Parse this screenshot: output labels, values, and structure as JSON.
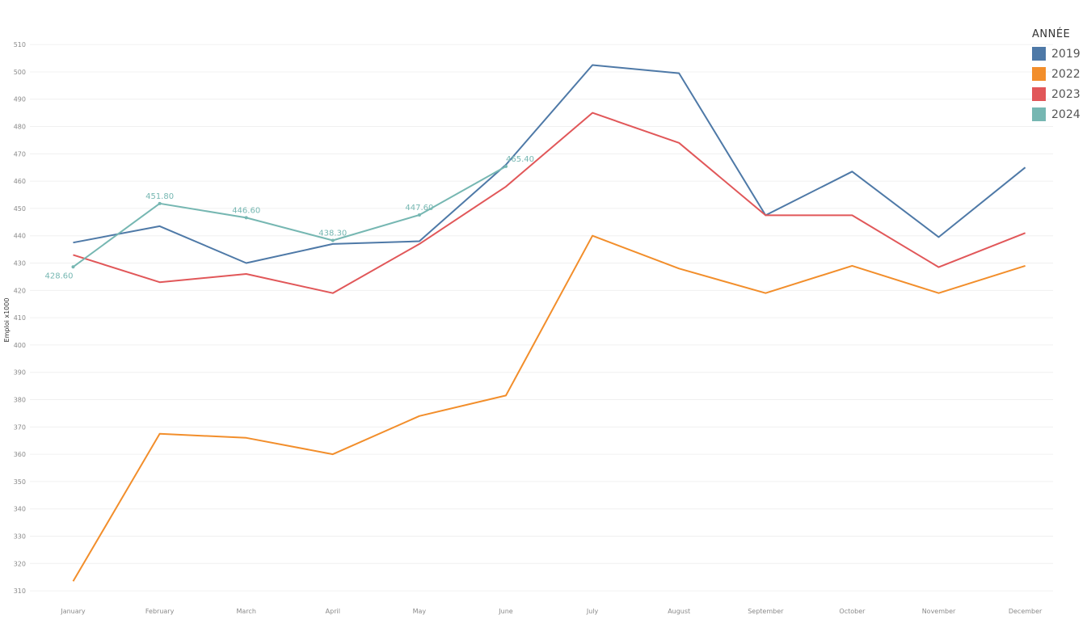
{
  "chart_data": {
    "type": "line",
    "title": "",
    "xlabel": "",
    "ylabel": "Emploi x1000",
    "ylim": [
      305,
      513
    ],
    "yticks": [
      310,
      320,
      330,
      340,
      350,
      360,
      370,
      380,
      390,
      400,
      410,
      420,
      430,
      440,
      450,
      460,
      470,
      480,
      490,
      500,
      510
    ],
    "categories": [
      "January",
      "February",
      "March",
      "April",
      "May",
      "June",
      "July",
      "August",
      "September",
      "October",
      "November",
      "December"
    ],
    "grid": true,
    "legend": {
      "title": "ANNÉE",
      "placement": "top-right"
    },
    "series": [
      {
        "name": "2019",
        "color": "#4e79a7",
        "values": [
          437.5,
          443.5,
          430.0,
          437.0,
          438.0,
          466.0,
          502.5,
          499.5,
          447.5,
          463.5,
          439.5,
          465.0
        ],
        "labels": []
      },
      {
        "name": "2022",
        "color": "#f28e2b",
        "values": [
          313.5,
          367.5,
          366.0,
          360.0,
          374.0,
          381.5,
          440.0,
          428.0,
          419.0,
          429.0,
          419.0,
          429.0
        ],
        "labels": []
      },
      {
        "name": "2023",
        "color": "#e15759",
        "values": [
          433.0,
          423.0,
          426.0,
          419.0,
          437.0,
          458.0,
          485.0,
          474.0,
          447.5,
          447.5,
          428.5,
          441.0
        ],
        "labels": []
      },
      {
        "name": "2024",
        "color": "#76b7b2",
        "values": [
          428.6,
          451.8,
          446.6,
          438.3,
          447.6,
          465.4,
          null,
          null,
          null,
          null,
          null,
          null
        ],
        "labels": [
          "428.60",
          "451.80",
          "446.60",
          "438.30",
          "447.60",
          "465.40",
          null,
          null,
          null,
          null,
          null,
          null
        ]
      }
    ]
  }
}
